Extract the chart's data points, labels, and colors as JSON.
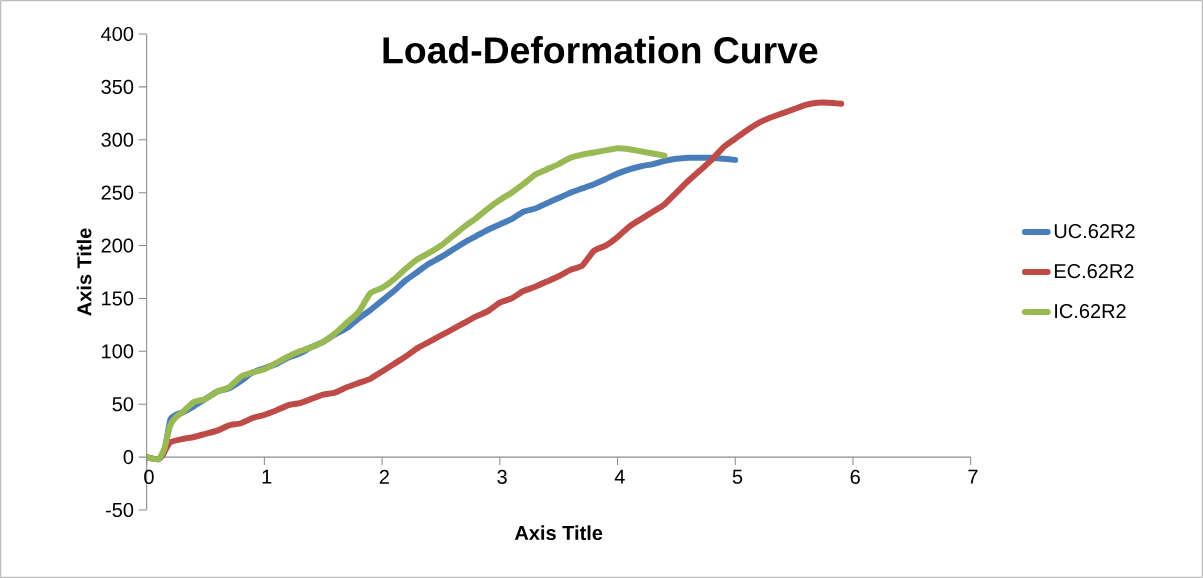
{
  "chart_data": {
    "type": "line",
    "title": "Load-Deformation Curve",
    "xlabel": "Axis Title",
    "ylabel": "Axis Title",
    "xlim": [
      0,
      7
    ],
    "ylim": [
      -50,
      400
    ],
    "xticks": [
      0,
      1,
      2,
      3,
      4,
      5,
      6,
      7
    ],
    "yticks": [
      -50,
      0,
      50,
      100,
      150,
      200,
      250,
      300,
      350,
      400
    ],
    "grid": false,
    "legend": "right",
    "marker": "none",
    "series": [
      {
        "name": "UC.62R2",
        "color": "#4a7ebb",
        "x": [
          0,
          0.1,
          0.15,
          0.2,
          0.25,
          0.3,
          0.4,
          0.5,
          0.6,
          0.7,
          0.8,
          0.9,
          1.0,
          1.1,
          1.2,
          1.3,
          1.4,
          1.5,
          1.6,
          1.7,
          1.8,
          1.9,
          2.0,
          2.1,
          2.2,
          2.3,
          2.4,
          2.5,
          2.6,
          2.7,
          2.8,
          2.9,
          3.0,
          3.1,
          3.2,
          3.3,
          3.4,
          3.5,
          3.6,
          3.7,
          3.8,
          3.9,
          4.0,
          4.1,
          4.2,
          4.3,
          4.4,
          4.5,
          4.6,
          4.7,
          4.8,
          4.9,
          5.0
        ],
        "values": [
          0,
          -2,
          5,
          35,
          40,
          42,
          48,
          55,
          62,
          65,
          72,
          80,
          84,
          88,
          94,
          98,
          104,
          109,
          116,
          122,
          131,
          139,
          148,
          157,
          167,
          175,
          183,
          189,
          196,
          203,
          209,
          215,
          220,
          225,
          232,
          235,
          240,
          245,
          250,
          254,
          258,
          263,
          268,
          272,
          275,
          277,
          280,
          282,
          283,
          283,
          283,
          282,
          281
        ]
      },
      {
        "name": "EC.62R2",
        "color": "#be4b48",
        "x": [
          0,
          0.1,
          0.15,
          0.2,
          0.3,
          0.4,
          0.5,
          0.6,
          0.7,
          0.8,
          0.9,
          1.0,
          1.1,
          1.2,
          1.3,
          1.4,
          1.5,
          1.6,
          1.7,
          1.8,
          1.9,
          2.0,
          2.1,
          2.2,
          2.3,
          2.4,
          2.5,
          2.6,
          2.7,
          2.8,
          2.9,
          3.0,
          3.1,
          3.2,
          3.3,
          3.4,
          3.5,
          3.6,
          3.7,
          3.8,
          3.9,
          4.0,
          4.1,
          4.2,
          4.3,
          4.4,
          4.5,
          4.6,
          4.7,
          4.8,
          4.9,
          5.0,
          5.1,
          5.2,
          5.3,
          5.4,
          5.5,
          5.6,
          5.7,
          5.8,
          5.9
        ],
        "values": [
          0,
          -2,
          5,
          14,
          17,
          19,
          22,
          25,
          30,
          32,
          37,
          40,
          44,
          49,
          51,
          55,
          59,
          61,
          66,
          70,
          74,
          81,
          88,
          95,
          103,
          109,
          115,
          121,
          127,
          133,
          138,
          146,
          150,
          157,
          161,
          166,
          171,
          177,
          181,
          195,
          200,
          208,
          218,
          225,
          232,
          239,
          250,
          261,
          271,
          281,
          293,
          301,
          309,
          316,
          321,
          325,
          329,
          333,
          335,
          335,
          334
        ]
      },
      {
        "name": "IC.62R2",
        "color": "#98b954",
        "x": [
          0,
          0.1,
          0.15,
          0.2,
          0.25,
          0.3,
          0.4,
          0.5,
          0.6,
          0.7,
          0.8,
          0.9,
          1.0,
          1.1,
          1.2,
          1.3,
          1.4,
          1.5,
          1.6,
          1.7,
          1.8,
          1.9,
          2.0,
          2.1,
          2.2,
          2.3,
          2.4,
          2.5,
          2.6,
          2.7,
          2.8,
          2.9,
          3.0,
          3.1,
          3.2,
          3.3,
          3.4,
          3.5,
          3.6,
          3.7,
          3.8,
          3.9,
          4.0,
          4.1,
          4.2,
          4.3,
          4.4
        ],
        "values": [
          0,
          -2,
          8,
          30,
          38,
          42,
          52,
          55,
          62,
          66,
          76,
          80,
          83,
          89,
          95,
          100,
          104,
          109,
          117,
          127,
          137,
          155,
          160,
          168,
          178,
          187,
          193,
          200,
          209,
          218,
          226,
          235,
          243,
          250,
          258,
          267,
          272,
          277,
          283,
          286,
          288,
          290,
          292,
          291,
          289,
          287,
          285
        ]
      }
    ]
  }
}
